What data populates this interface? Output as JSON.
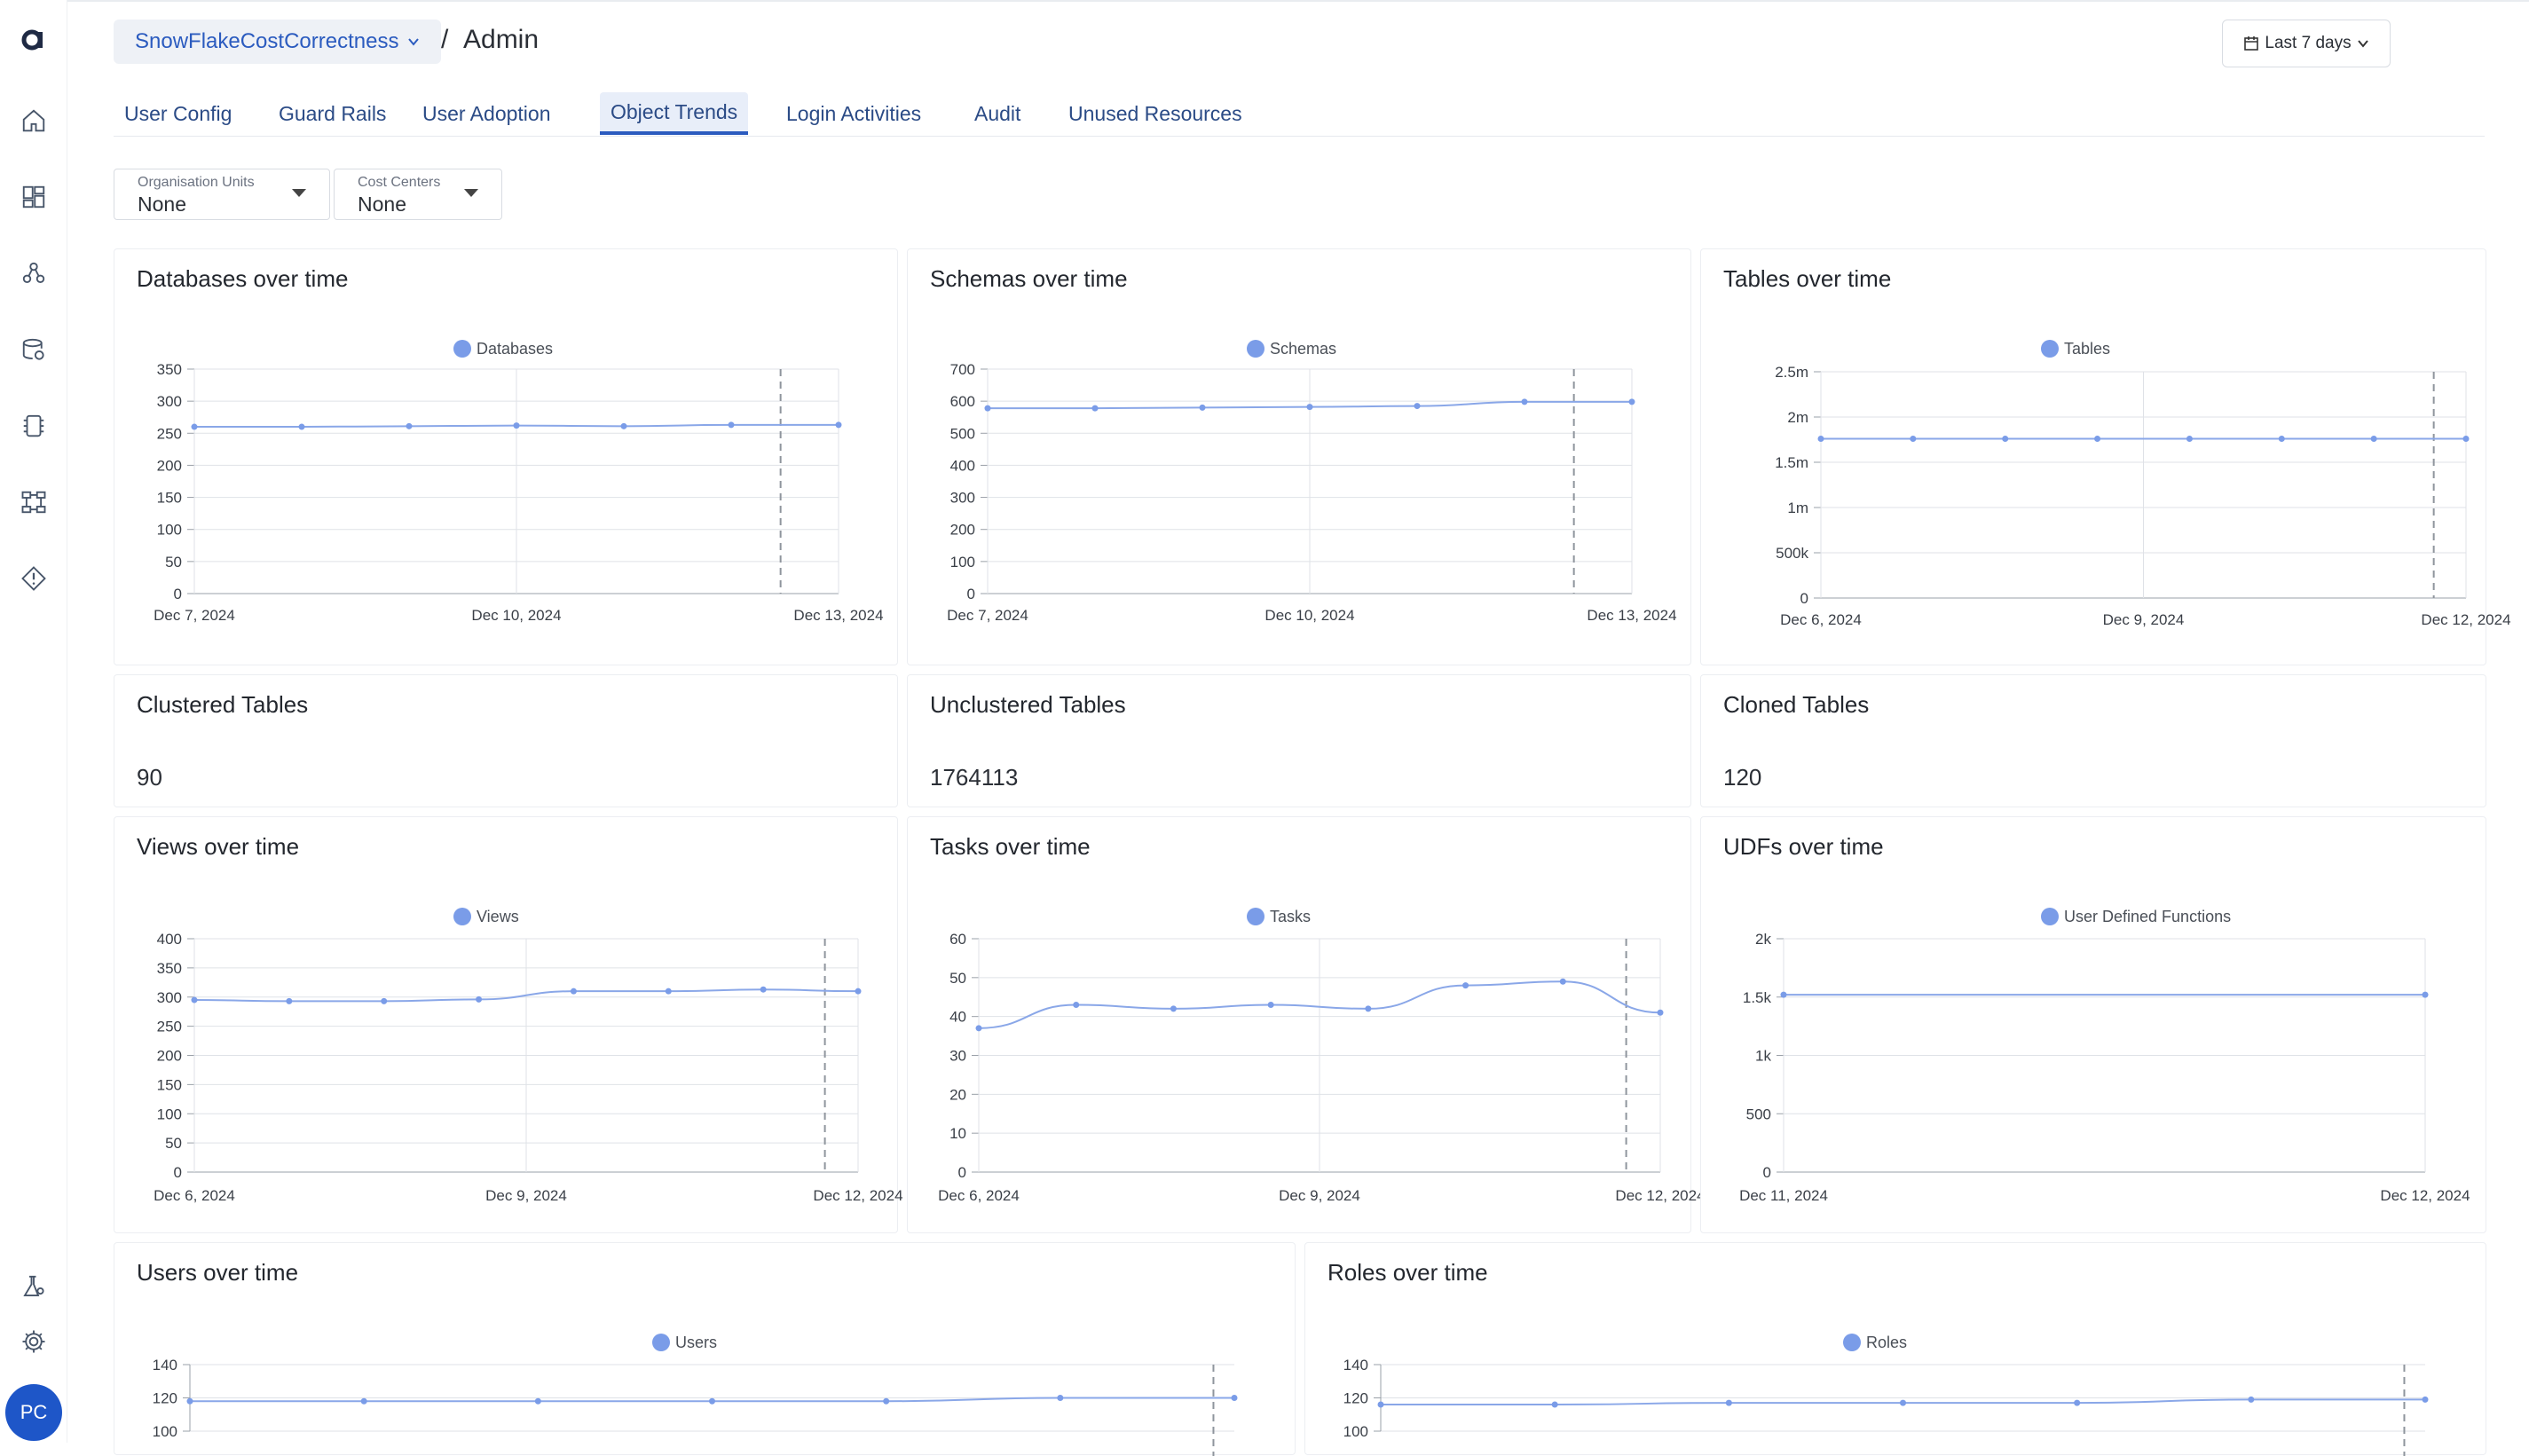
{
  "sidebar": {
    "logo": "a",
    "icons": [
      "home-icon",
      "dashboard-icon",
      "nodes-icon",
      "database-icon",
      "chip-icon",
      "workflow-icon",
      "diamond-alert-icon",
      "lab-flask-icon",
      "gear-icon"
    ],
    "avatar": "PC"
  },
  "header": {
    "workspace": "SnowFlakeCostCorrectness",
    "separator": "/",
    "page": "Admin",
    "date_range": "Last 7 days"
  },
  "tabs": [
    {
      "label": "User Config",
      "active": false
    },
    {
      "label": "Guard Rails",
      "active": false
    },
    {
      "label": "User Adoption",
      "active": false
    },
    {
      "label": "Object Trends",
      "active": true
    },
    {
      "label": "Login Activities",
      "active": false
    },
    {
      "label": "Audit",
      "active": false
    },
    {
      "label": "Unused Resources",
      "active": false
    }
  ],
  "filters": {
    "org_units": {
      "label": "Organisation Units",
      "value": "None"
    },
    "cost_centers": {
      "label": "Cost Centers",
      "value": "None"
    }
  },
  "stats": {
    "clustered": {
      "title": "Clustered Tables",
      "value": "90"
    },
    "unclustered": {
      "title": "Unclustered Tables",
      "value": "1764113"
    },
    "cloned": {
      "title": "Cloned Tables",
      "value": "120"
    }
  },
  "colors": {
    "accent": "#2b5bbf",
    "series": "#7a9ce8",
    "line": "#8aa7e8"
  },
  "chart_data": [
    {
      "id": "databases",
      "title": "Databases over time",
      "type": "line",
      "series": [
        {
          "name": "Databases",
          "values": [
            260,
            260,
            261,
            262,
            261,
            263,
            263
          ]
        }
      ],
      "ylim": [
        0,
        350
      ],
      "yticks": [
        "0",
        "50",
        "100",
        "150",
        "200",
        "250",
        "300",
        "350"
      ],
      "xticks": [
        "Dec 7, 2024",
        "Dec 10, 2024",
        "Dec 13, 2024"
      ]
    },
    {
      "id": "schemas",
      "title": "Schemas over time",
      "type": "line",
      "series": [
        {
          "name": "Schemas",
          "values": [
            578,
            578,
            580,
            582,
            585,
            598,
            598
          ]
        }
      ],
      "ylim": [
        0,
        700
      ],
      "yticks": [
        "0",
        "100",
        "200",
        "300",
        "400",
        "500",
        "600",
        "700"
      ],
      "xticks": [
        "Dec 7, 2024",
        "Dec 10, 2024",
        "Dec 13, 2024"
      ]
    },
    {
      "id": "tables",
      "title": "Tables over time",
      "type": "line",
      "series": [
        {
          "name": "Tables",
          "values": [
            1760000,
            1760000,
            1760000,
            1760000,
            1760000,
            1760000,
            1760000,
            1760000
          ]
        }
      ],
      "ylim": [
        0,
        2500000
      ],
      "yticks": [
        "0",
        "500k",
        "1m",
        "1.5m",
        "2m",
        "2.5m"
      ],
      "xticks": [
        "Dec 6, 2024",
        "Dec 9, 2024",
        "Dec 12, 2024"
      ]
    },
    {
      "id": "views",
      "title": "Views over time",
      "type": "line",
      "series": [
        {
          "name": "Views",
          "values": [
            295,
            293,
            293,
            296,
            310,
            310,
            313,
            310
          ]
        }
      ],
      "ylim": [
        0,
        400
      ],
      "yticks": [
        "0",
        "50",
        "100",
        "150",
        "200",
        "250",
        "300",
        "350",
        "400"
      ],
      "xticks": [
        "Dec 6, 2024",
        "Dec 9, 2024",
        "Dec 12, 2024"
      ]
    },
    {
      "id": "tasks",
      "title": "Tasks over time",
      "type": "line",
      "series": [
        {
          "name": "Tasks",
          "values": [
            37,
            43,
            42,
            43,
            42,
            48,
            49,
            41
          ]
        }
      ],
      "ylim": [
        0,
        60
      ],
      "yticks": [
        "0",
        "10",
        "20",
        "30",
        "40",
        "50",
        "60"
      ],
      "xticks": [
        "Dec 6, 2024",
        "Dec 9, 2024",
        "Dec 12, 2024"
      ]
    },
    {
      "id": "udfs",
      "title": "UDFs over time",
      "type": "line",
      "series": [
        {
          "name": "User Defined Functions",
          "values": [
            1520,
            1520
          ]
        }
      ],
      "ylim": [
        0,
        2000
      ],
      "yticks": [
        "0",
        "500",
        "1k",
        "1.5k",
        "2k"
      ],
      "xticks": [
        "Dec 11, 2024",
        "Dec 12, 2024"
      ]
    },
    {
      "id": "users",
      "title": "Users over time",
      "type": "line",
      "series": [
        {
          "name": "Users",
          "values": [
            118,
            118,
            118,
            118,
            118,
            120,
            120
          ]
        }
      ],
      "ylim": [
        100,
        140
      ],
      "yticks": [
        "100",
        "120",
        "140"
      ],
      "xticks": []
    },
    {
      "id": "roles",
      "title": "Roles over time",
      "type": "line",
      "series": [
        {
          "name": "Roles",
          "values": [
            116,
            116,
            117,
            117,
            117,
            119,
            119
          ]
        }
      ],
      "ylim": [
        100,
        140
      ],
      "yticks": [
        "100",
        "120",
        "140"
      ],
      "xticks": []
    }
  ]
}
